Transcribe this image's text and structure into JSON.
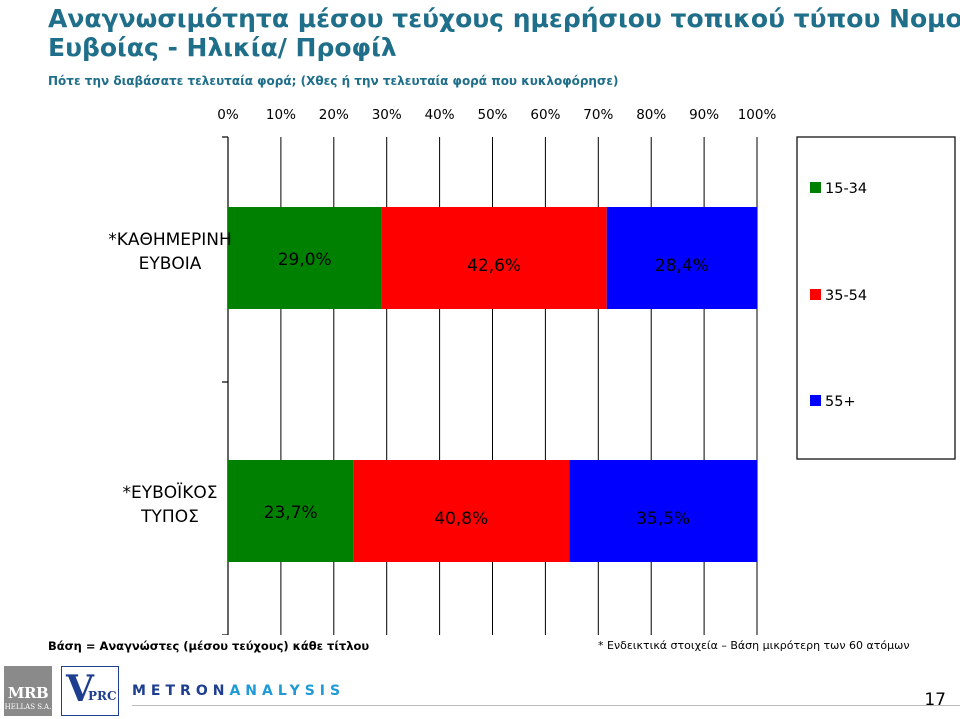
{
  "header": {
    "title_line1": "Αναγνωσιμότητα μέσου τεύχους ημερήσιου τοπικού τύπου Νομού",
    "title_line2": "Ευβοίας - Ηλικία/ Προφίλ",
    "subtitle": "Πότε την διαβάσατε τελευταία φορά; (Χθες ή την τελευταία φορά που κυκλοφόρησε)"
  },
  "chart_data": {
    "type": "bar",
    "orientation": "horizontal",
    "stacked": true,
    "categories": [
      {
        "line1": "*ΚΑΘΗΜΕΡΙΝΗ",
        "line2": "ΕΥΒΟΙΑ"
      },
      {
        "line1": "*ΕΥΒΟΪΚΟΣ",
        "line2": "ΤΥΠΟΣ"
      }
    ],
    "series": [
      {
        "name": "15-34",
        "color": "#008000",
        "values": [
          29.0,
          23.7
        ],
        "labels": [
          "",
          ""
        ]
      },
      {
        "name": "35-54",
        "color": "#ff0000",
        "values": [
          42.6,
          40.8
        ],
        "labels": [
          "42,6%",
          "40,8%"
        ]
      },
      {
        "name": "55+",
        "color": "#0000ff",
        "values": [
          28.4,
          35.5
        ],
        "labels": [
          "28,4%",
          "35,5%"
        ]
      }
    ],
    "first_labels": [
      "29,0%",
      "23,7%"
    ],
    "xlim": [
      0,
      100
    ],
    "x_ticks": [
      "0%",
      "10%",
      "20%",
      "30%",
      "40%",
      "50%",
      "60%",
      "70%",
      "80%",
      "90%",
      "100%"
    ],
    "x_axis_position": "top",
    "grid": true,
    "legend_placement": "right"
  },
  "footer": {
    "base_note": "Βάση = Αναγνώστες (μέσου τεύχους) κάθε τίτλου",
    "indicative_note": "* Ενδεικτικά στοιχεία – Βάση μικρότερη των 60 ατόμων",
    "page_number": "17"
  },
  "logos": {
    "mrb_line1": "MRB",
    "mrb_line2": "HELLAS S.A.",
    "vprc_v": "V",
    "vprc_rest": "PRC",
    "metron_part1": "METRON",
    "metron_part2": "ANALYSIS"
  }
}
